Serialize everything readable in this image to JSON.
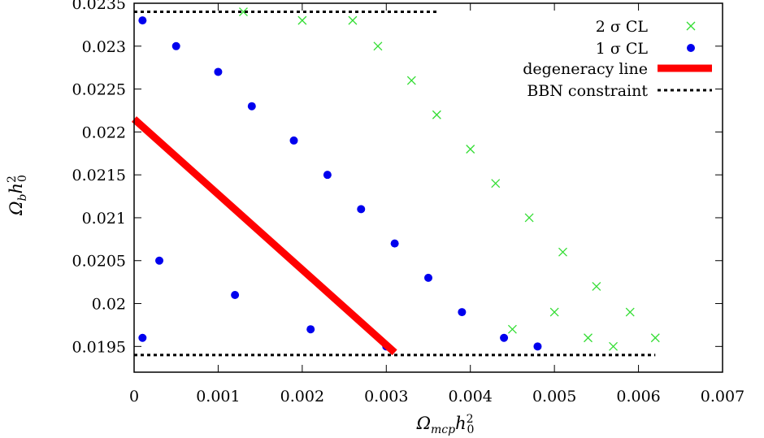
{
  "chart_data": {
    "type": "scatter",
    "xlabel": "Ω_mcp h_0^2",
    "ylabel": "Ω_b h_0^2",
    "xlim": [
      0,
      0.007
    ],
    "ylim": [
      0.0192,
      0.0235
    ],
    "x_ticks": [
      "0",
      "0.001",
      "0.002",
      "0.003",
      "0.004",
      "0.005",
      "0.006",
      "0.007"
    ],
    "y_ticks": [
      "0.0195",
      "0.02",
      "0.0205",
      "0.021",
      "0.0215",
      "0.022",
      "0.0225",
      "0.023",
      "0.0235"
    ],
    "legend_position": "top-right",
    "series": [
      {
        "name": "2 σ CL",
        "marker": "cross",
        "color": "#33dd33",
        "points": [
          [
            0.0062,
            0.0196
          ],
          [
            0.0059,
            0.0199
          ],
          [
            0.0055,
            0.0202
          ],
          [
            0.0051,
            0.0206
          ],
          [
            0.0047,
            0.021
          ],
          [
            0.0043,
            0.0214
          ],
          [
            0.004,
            0.0218
          ],
          [
            0.0036,
            0.0222
          ],
          [
            0.0033,
            0.0226
          ],
          [
            0.0029,
            0.023
          ],
          [
            0.0026,
            0.0233
          ],
          [
            0.0013,
            0.0234
          ],
          [
            0.002,
            0.0233
          ],
          [
            0.0045,
            0.0197
          ],
          [
            0.005,
            0.0199
          ],
          [
            0.0054,
            0.0196
          ],
          [
            0.0057,
            0.0195
          ]
        ]
      },
      {
        "name": "1 σ CL",
        "marker": "dot",
        "color": "#0000ee",
        "points": [
          [
            0.0001,
            0.0233
          ],
          [
            0.0005,
            0.023
          ],
          [
            0.001,
            0.0227
          ],
          [
            0.0014,
            0.0223
          ],
          [
            0.0019,
            0.0219
          ],
          [
            0.0023,
            0.0215
          ],
          [
            0.0027,
            0.0211
          ],
          [
            0.0031,
            0.0207
          ],
          [
            0.0035,
            0.0203
          ],
          [
            0.0039,
            0.0199
          ],
          [
            0.0044,
            0.0196
          ],
          [
            0.0048,
            0.0195
          ],
          [
            0.0001,
            0.0196
          ],
          [
            0.0003,
            0.0205
          ],
          [
            0.0012,
            0.0201
          ],
          [
            0.0021,
            0.0197
          ],
          [
            0.003,
            0.0195
          ]
        ]
      }
    ],
    "lines": [
      {
        "name": "degeneracy line",
        "style": "thick-solid",
        "color": "#ff0000",
        "x": [
          0,
          0.0031
        ],
        "y": [
          0.02215,
          0.01943
        ]
      },
      {
        "name": "BBN constraint",
        "style": "dotted",
        "color": "#000000",
        "x": [
          0,
          0.0036
        ],
        "y": [
          0.0234,
          0.0234
        ]
      },
      {
        "name": "BBN constraint",
        "style": "dotted",
        "color": "#000000",
        "x": [
          0,
          0.0062
        ],
        "y": [
          0.0194,
          0.0194
        ]
      }
    ],
    "legend": [
      {
        "label": "2 σ CL",
        "marker": "cross",
        "color": "#33dd33"
      },
      {
        "label": "1 σ CL",
        "marker": "dot",
        "color": "#0000ee"
      },
      {
        "label": "degeneracy line",
        "marker": "thick-line",
        "color": "#ff0000"
      },
      {
        "label": "BBN constraint",
        "marker": "dotted-line",
        "color": "#000000"
      }
    ]
  }
}
